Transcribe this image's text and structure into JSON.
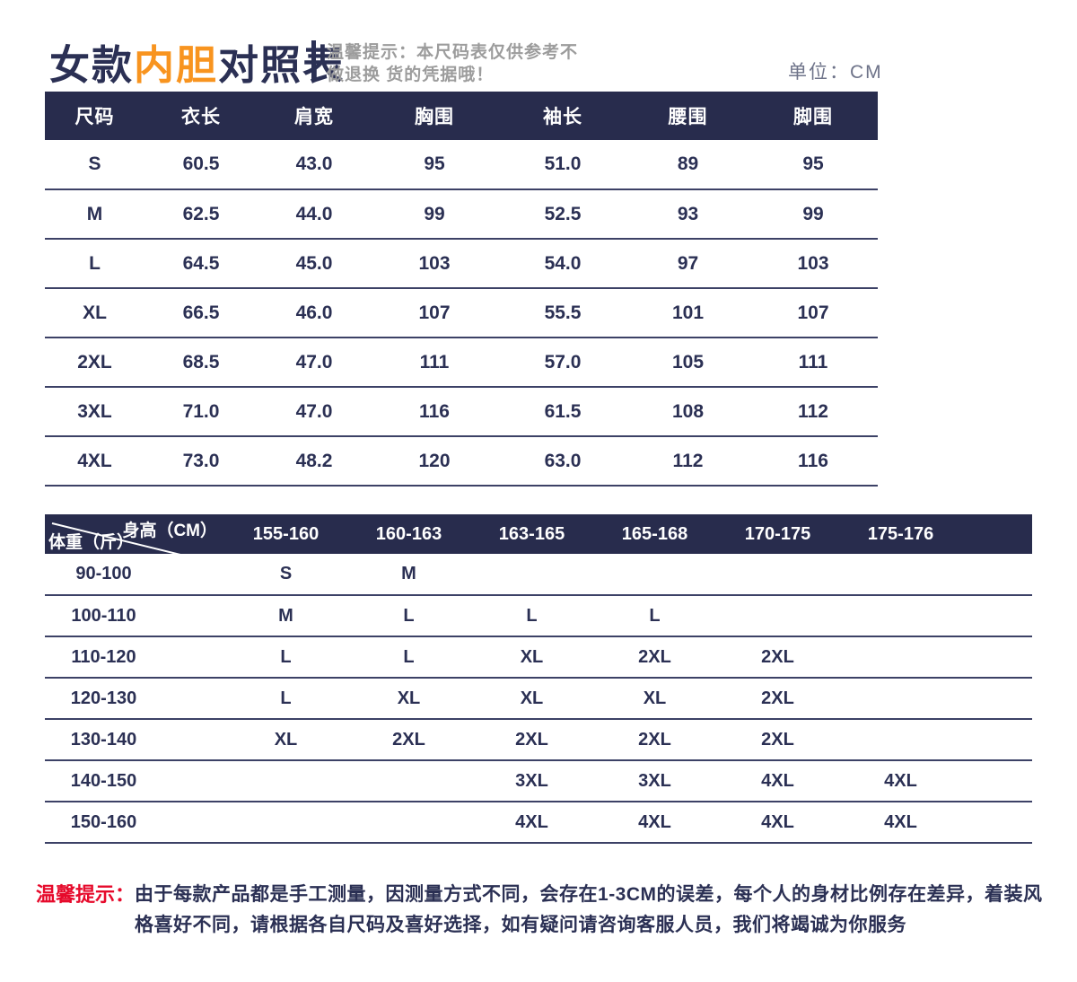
{
  "header": {
    "title_part1": "女款",
    "title_part2": "内胆",
    "title_part3": "对照表",
    "tip_line1": "温馨提示：本尺码表仅供参考不",
    "tip_line2": "做退换 货的凭据哦！",
    "unit_label": "单位：CM"
  },
  "size_table": {
    "columns": [
      "尺码",
      "衣长",
      "肩宽",
      "胸围",
      "袖长",
      "腰围",
      "脚围"
    ],
    "rows": [
      [
        "S",
        "60.5",
        "43.0",
        "95",
        "51.0",
        "89",
        "95"
      ],
      [
        "M",
        "62.5",
        "44.0",
        "99",
        "52.5",
        "93",
        "99"
      ],
      [
        "L",
        "64.5",
        "45.0",
        "103",
        "54.0",
        "97",
        "103"
      ],
      [
        "XL",
        "66.5",
        "46.0",
        "107",
        "55.5",
        "101",
        "107"
      ],
      [
        "2XL",
        "68.5",
        "47.0",
        "111",
        "57.0",
        "105",
        "111"
      ],
      [
        "3XL",
        "71.0",
        "47.0",
        "116",
        "61.5",
        "108",
        "112"
      ],
      [
        "4XL",
        "73.0",
        "48.2",
        "120",
        "63.0",
        "112",
        "116"
      ]
    ]
  },
  "matrix_table": {
    "corner_top": "身高（CM）",
    "corner_bottom": "体重（斤）",
    "columns": [
      "155-160",
      "160-163",
      "163-165",
      "165-168",
      "170-175",
      "175-176"
    ],
    "rows": [
      {
        "weight": "90-100",
        "cells": [
          "S",
          "M",
          "",
          "",
          "",
          ""
        ]
      },
      {
        "weight": "100-110",
        "cells": [
          "M",
          "L",
          "L",
          "L",
          "",
          ""
        ]
      },
      {
        "weight": "110-120",
        "cells": [
          "L",
          "L",
          "XL",
          "2XL",
          "2XL",
          ""
        ]
      },
      {
        "weight": "120-130",
        "cells": [
          "L",
          "XL",
          "XL",
          "XL",
          "2XL",
          ""
        ]
      },
      {
        "weight": "130-140",
        "cells": [
          "XL",
          "2XL",
          "2XL",
          "2XL",
          "2XL",
          ""
        ]
      },
      {
        "weight": "140-150",
        "cells": [
          "",
          "",
          "3XL",
          "3XL",
          "4XL",
          "4XL"
        ]
      },
      {
        "weight": "150-160",
        "cells": [
          "",
          "",
          "4XL",
          "4XL",
          "4XL",
          "4XL"
        ]
      }
    ]
  },
  "footer_note": {
    "label": "温馨提示：",
    "text": "由于每款产品都是手工测量，因测量方式不同，会存在1-3CM的误差，每个人的身材比例存在差异，着装风格喜好不同，请根据各自尺码及喜好选择，如有疑问请咨询客服人员，我们将竭诚为你服务"
  },
  "colors": {
    "navy_header": "#282c4d",
    "navy_text": "#2b3054",
    "row_line": "#3c4166",
    "orange_accent": "#f8941f",
    "red_accent": "#e60a2b",
    "gray_tip": "#9c9c9c",
    "unit_gray": "#6e7389"
  }
}
